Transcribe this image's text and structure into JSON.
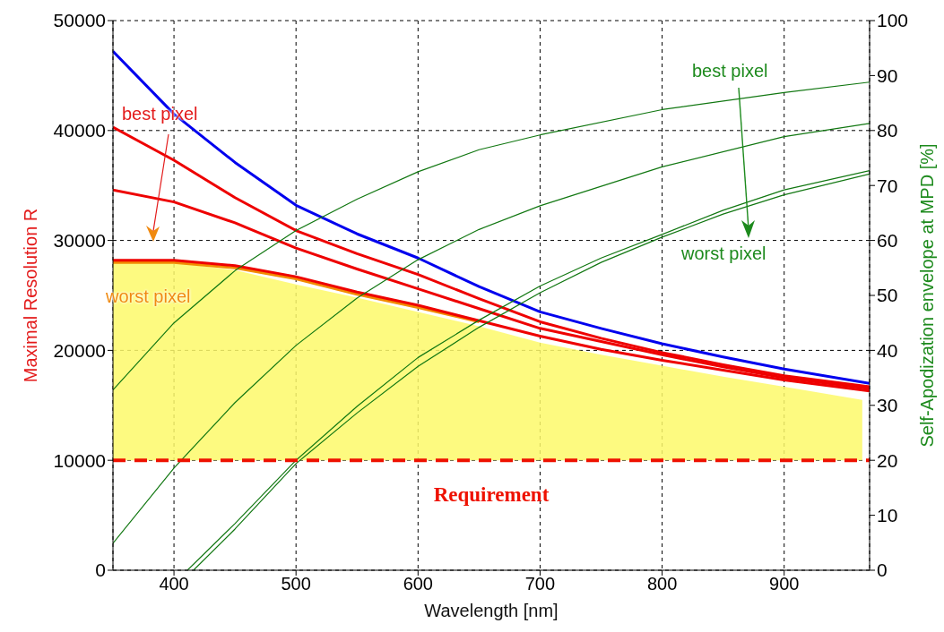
{
  "chart_data": {
    "type": "line",
    "xlabel": "Wavelength [nm]",
    "ylabel": "Maximal Resolution R",
    "y2label": "Self-Apodization envelope at MPD [%]",
    "x": [
      350,
      400,
      450,
      500,
      550,
      600,
      650,
      700,
      750,
      800,
      850,
      900,
      970
    ],
    "xlim": [
      350,
      970
    ],
    "xticks": [
      400,
      500,
      600,
      700,
      800,
      900
    ],
    "ylim": [
      0,
      50000
    ],
    "yticks": [
      0,
      10000,
      20000,
      30000,
      40000,
      50000
    ],
    "y2lim": [
      0,
      100
    ],
    "y2ticks": [
      0,
      10,
      20,
      30,
      40,
      50,
      60,
      70,
      80,
      90,
      100
    ],
    "grid": true,
    "marker": "none",
    "line_style": "solid",
    "series": [
      {
        "type": "area",
        "color": "#fdf96a",
        "x": [
          350,
          400,
          450,
          500,
          550,
          600,
          650,
          700,
          750,
          800,
          850,
          900,
          964
        ],
        "values": [
          28000,
          28000,
          27300,
          26000,
          24800,
          23500,
          22200,
          20700,
          19600,
          18600,
          17600,
          16700,
          15500
        ]
      },
      {
        "color": "#0000ee",
        "values": [
          47200,
          41500,
          37100,
          33200,
          30600,
          28400,
          25800,
          23500,
          22000,
          20600,
          19400,
          18300,
          17000
        ]
      },
      {
        "color": "#ee0000",
        "values": [
          40300,
          37300,
          33900,
          30900,
          28800,
          26900,
          24700,
          22600,
          21100,
          19800,
          18700,
          17700,
          16700
        ]
      },
      {
        "color": "#ee0000",
        "values": [
          34600,
          33500,
          31600,
          29300,
          27400,
          25600,
          23800,
          22000,
          20800,
          19600,
          18500,
          17500,
          16500
        ]
      },
      {
        "color": "#f28c00",
        "x": [
          350,
          400,
          450,
          500,
          550,
          600,
          650
        ],
        "values": [
          28000,
          28000,
          27500,
          26500,
          25100,
          23900,
          22600
        ]
      },
      {
        "color": "#ee0000",
        "values": [
          28200,
          28200,
          27700,
          26700,
          25300,
          24100,
          22700,
          21300,
          20100,
          19100,
          18200,
          17300,
          16300
        ]
      },
      {
        "color": "#117711",
        "axis": "y2",
        "x": [
          350,
          400,
          450,
          500,
          550,
          600,
          650,
          700,
          800,
          900,
          970
        ],
        "values": [
          32.8,
          45,
          54.5,
          61.8,
          67.5,
          72.5,
          76.5,
          79.2,
          83.8,
          86.9,
          88.8
        ]
      },
      {
        "color": "#117711",
        "axis": "y2",
        "x": [
          350,
          400,
          450,
          500,
          550,
          600,
          650,
          700,
          800,
          900,
          970
        ],
        "values": [
          4.9,
          18.6,
          30.5,
          40.9,
          49.5,
          56.5,
          62,
          66.3,
          73.4,
          78.9,
          81.3
        ]
      },
      {
        "color": "#117711",
        "axis": "y2",
        "x": [
          411,
          450,
          500,
          550,
          600,
          650,
          700,
          750,
          800,
          850,
          900,
          970
        ],
        "values": [
          0,
          8.5,
          20,
          29.8,
          38.7,
          45.5,
          51.7,
          56.8,
          61.1,
          65.5,
          69.2,
          72.7
        ]
      },
      {
        "color": "#117711",
        "axis": "y2",
        "x": [
          416,
          450,
          500,
          550,
          600,
          650,
          700,
          750,
          800,
          850,
          900,
          970
        ],
        "values": [
          0,
          7.5,
          19.4,
          28.6,
          37.1,
          44.2,
          50.5,
          56,
          60.6,
          64.8,
          68.3,
          72.1
        ]
      }
    ],
    "ref_lines": [
      {
        "axis": "y",
        "value": 10000,
        "label": "Requirement",
        "color": "#ee1100",
        "line_style": "dashed"
      }
    ],
    "annotations": [
      "best pixel",
      "worst pixel",
      "best pixel",
      "worst pixel"
    ]
  }
}
